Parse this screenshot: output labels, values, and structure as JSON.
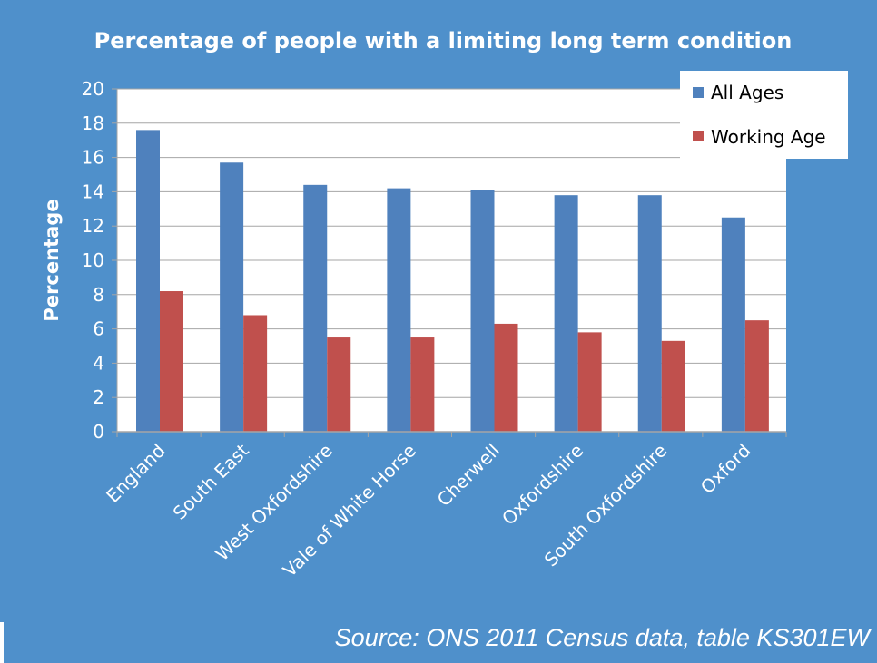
{
  "colors": {
    "background": "#4f90cb",
    "plot_area": "#ffffff",
    "all_ages": "#4f81bd",
    "working_age": "#c0504d",
    "text": "#ffffff",
    "gridline": "#a6a6a6"
  },
  "source": "Source: ONS 2011 Census data, table KS301EW",
  "chart_data": {
    "type": "bar",
    "title": "Percentage of people with a limiting long term condition",
    "xlabel": "",
    "ylabel": "Percentage",
    "ylim": [
      0,
      20
    ],
    "yticks": [
      0,
      2,
      4,
      6,
      8,
      10,
      12,
      14,
      16,
      18,
      20
    ],
    "grid": true,
    "legend_position": "top-right",
    "categories": [
      "England",
      "South East",
      "West Oxfordshire",
      "Vale of White Horse",
      "Cherwell",
      "Oxfordshire",
      "South Oxfordshire",
      "Oxford"
    ],
    "series": [
      {
        "name": "All Ages",
        "color": "#4f81bd",
        "values": [
          17.6,
          15.7,
          14.4,
          14.2,
          14.1,
          13.8,
          13.8,
          12.5
        ]
      },
      {
        "name": "Working Age",
        "color": "#c0504d",
        "values": [
          8.2,
          6.8,
          5.5,
          5.5,
          6.3,
          5.8,
          5.3,
          6.5
        ]
      }
    ]
  }
}
